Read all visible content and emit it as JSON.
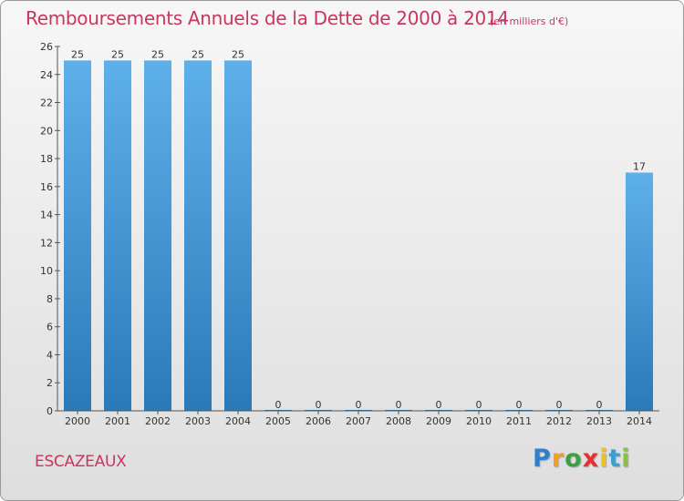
{
  "chart_data": {
    "type": "bar",
    "title": "Remboursements Annuels de la Dette de 2000 à 2014",
    "subtitle": "(en milliers d'€)",
    "categories": [
      "2000",
      "2001",
      "2002",
      "2003",
      "2004",
      "2005",
      "2006",
      "2007",
      "2008",
      "2009",
      "2010",
      "2011",
      "2012",
      "2013",
      "2014"
    ],
    "values": [
      25,
      25,
      25,
      25,
      25,
      0,
      0,
      0,
      0,
      0,
      0,
      0,
      0,
      0,
      17
    ],
    "value_labels": [
      "25",
      "25",
      "25",
      "25",
      "25",
      "0",
      "0",
      "0",
      "0",
      "0",
      "0",
      "0",
      "0",
      "0",
      "17"
    ],
    "ylim": [
      0,
      26
    ],
    "yticks": [
      0,
      2,
      4,
      6,
      8,
      10,
      12,
      14,
      16,
      18,
      20,
      22,
      24,
      26
    ],
    "ytick_labels": [
      "0",
      "2",
      "4",
      "6",
      "8",
      "10",
      "12",
      "14",
      "16",
      "18",
      "20",
      "22",
      "24",
      "26"
    ],
    "xlabel": "",
    "ylabel": "",
    "grid": false,
    "bar_color_light": "#5eb0ea",
    "bar_color_dark": "#2a7ab9"
  },
  "commune": "ESCAZEAUX",
  "logo": {
    "letters": [
      "P",
      "r",
      "o",
      "x",
      "i",
      "t",
      "i"
    ],
    "colors": [
      "#2e7fd0",
      "#f0a020",
      "#3aa040",
      "#e53030",
      "#f0c020",
      "#3aa0d0",
      "#88c040"
    ]
  }
}
